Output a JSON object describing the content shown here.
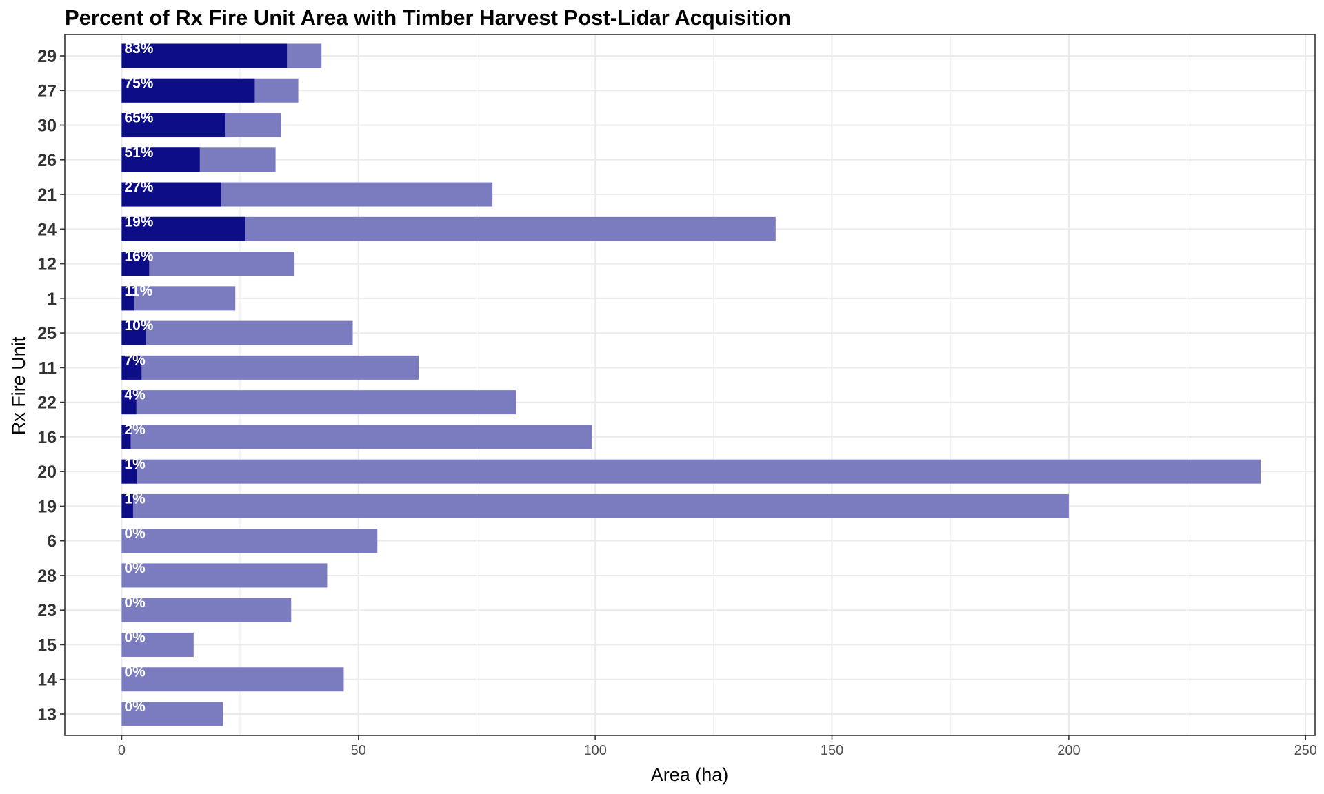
{
  "chart_data": {
    "type": "bar",
    "orientation": "horizontal",
    "title": "Percent of Rx Fire Unit Area with Timber Harvest Post-Lidar Acquisition",
    "xlabel": "Area (ha)",
    "ylabel": "Rx Fire Unit",
    "xlim": [
      -12,
      252
    ],
    "x_ticks": [
      0,
      50,
      100,
      150,
      200,
      250
    ],
    "grid": true,
    "legend": "none",
    "categories": [
      "29",
      "27",
      "30",
      "26",
      "21",
      "24",
      "12",
      "1",
      "25",
      "11",
      "22",
      "16",
      "20",
      "19",
      "6",
      "28",
      "23",
      "15",
      "14",
      "13"
    ],
    "series": [
      {
        "values": [
          42.2,
          37.3,
          33.7,
          32.5,
          78.3,
          138.1,
          36.5,
          24.0,
          48.8,
          62.7,
          83.3,
          99.3,
          240.5,
          200.0,
          54.0,
          43.4,
          35.8,
          15.2,
          46.9,
          21.4
        ]
      },
      {
        "values": [
          34.9,
          28.1,
          21.9,
          16.5,
          21.0,
          26.1,
          5.8,
          2.6,
          5.1,
          4.2,
          3.1,
          1.9,
          3.2,
          2.4,
          0,
          0,
          0,
          0,
          0,
          0
        ]
      }
    ],
    "labels": [
      "83%",
      "75%",
      "65%",
      "51%",
      "27%",
      "19%",
      "16%",
      "11%",
      "10%",
      "7%",
      "4%",
      "2%",
      "1%",
      "1%",
      "0%",
      "0%",
      "0%",
      "0%",
      "0%",
      "0%"
    ],
    "colors": {
      "total": "#7b7bc0",
      "harvested": "#0d0d87",
      "grid": "#ebebeb",
      "axis": "#333333"
    }
  }
}
